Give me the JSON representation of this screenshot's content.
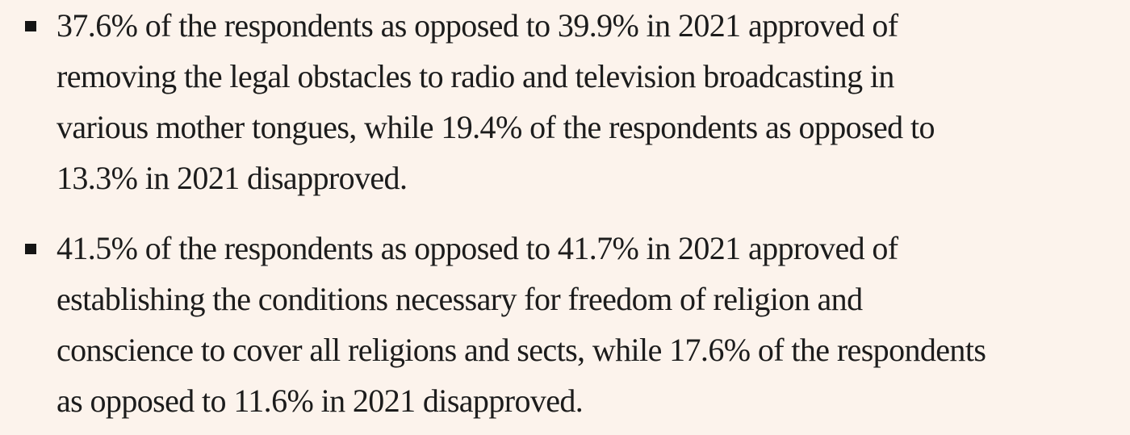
{
  "bullets": [
    {
      "lines": [
        "37.6% of the respondents as opposed to 39.9% in 2021 approved of",
        "removing the legal obstacles to radio and television broadcasting in",
        "various mother tongues, while 19.4% of the respondents as opposed to",
        "13.3% in 2021 disapproved."
      ]
    },
    {
      "lines": [
        "41.5% of the respondents as opposed to 41.7% in 2021 approved of",
        "establishing the conditions necessary for freedom of religion and",
        "conscience to cover all religions and sects, while 17.6% of the respondents",
        "as opposed to 11.6% in 2021 disapproved."
      ]
    }
  ]
}
